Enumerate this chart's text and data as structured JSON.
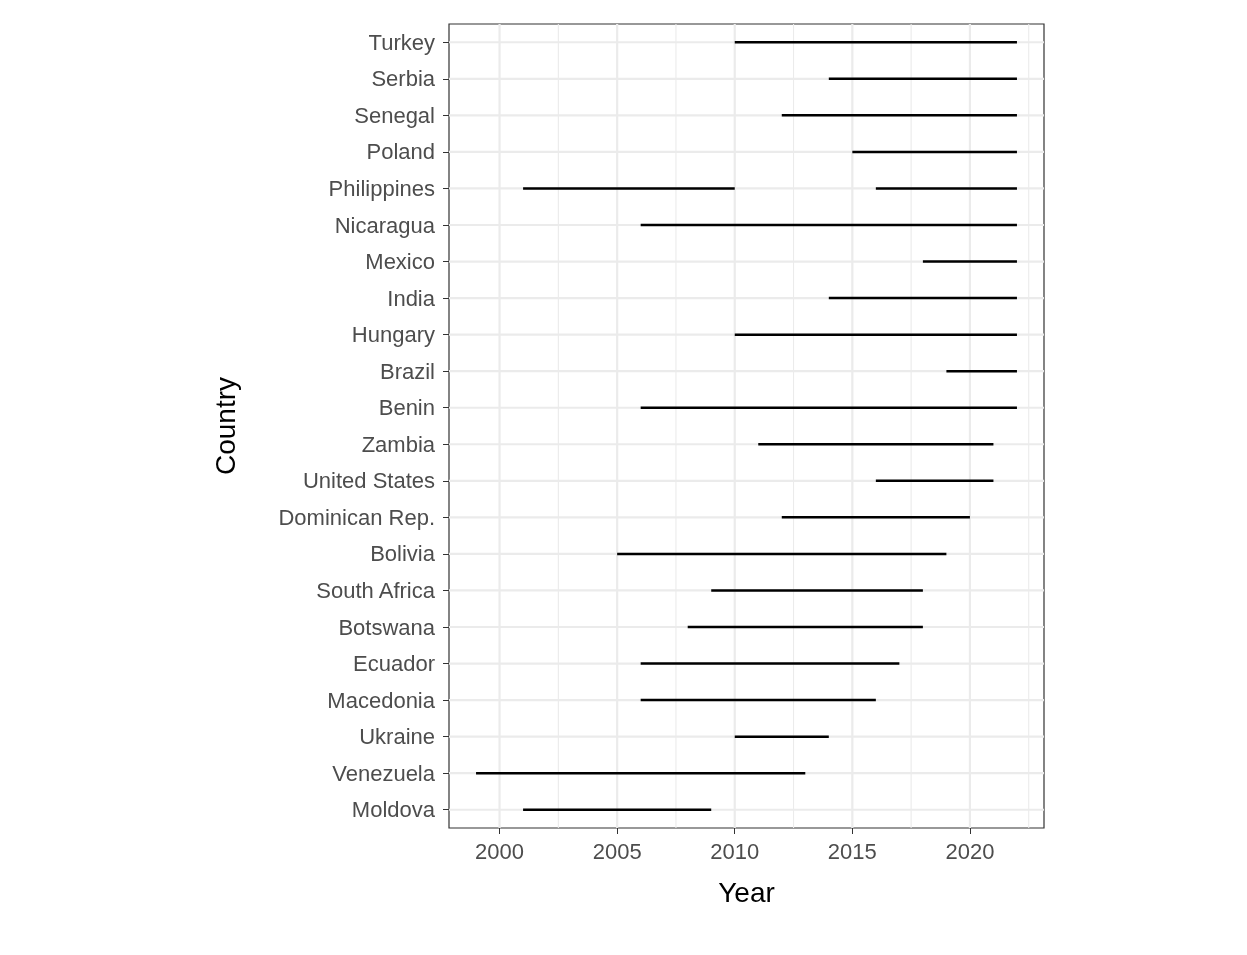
{
  "chart_data": {
    "type": "bar",
    "orientation": "horizontal",
    "xlabel": "Year",
    "ylabel": "Country",
    "categories": [
      "Turkey",
      "Serbia",
      "Senegal",
      "Poland",
      "Philippines",
      "Nicaragua",
      "Mexico",
      "India",
      "Hungary",
      "Brazil",
      "Benin",
      "Zambia",
      "United States",
      "Dominican Rep.",
      "Bolivia",
      "South Africa",
      "Botswana",
      "Ecuador",
      "Macedonia",
      "Ukraine",
      "Venezuela",
      "Moldova"
    ],
    "series": [
      {
        "color": "#000000",
        "base": [
          2010,
          2014,
          2012,
          2015,
          2001,
          2006,
          2018,
          2014,
          2010,
          2019,
          2006,
          2011,
          2016,
          2012,
          2005,
          2009,
          2008,
          2006,
          2006,
          2010,
          1999,
          2001
        ],
        "values": [
          12,
          8,
          10,
          7,
          9,
          16,
          4,
          8,
          12,
          3,
          16,
          10,
          5,
          8,
          14,
          9,
          10,
          11,
          10,
          4,
          14,
          8
        ]
      },
      {
        "color": "#000000",
        "base": [
          null,
          null,
          null,
          null,
          2016,
          null,
          null,
          null,
          null,
          null,
          null,
          null,
          null,
          null,
          null,
          null,
          null,
          null,
          null,
          null,
          null,
          null
        ],
        "values": [
          null,
          null,
          null,
          null,
          6,
          null,
          null,
          null,
          null,
          null,
          null,
          null,
          null,
          null,
          null,
          null,
          null,
          null,
          null,
          null,
          null,
          null
        ]
      }
    ],
    "xlim": [
      1997.85,
      2023.15
    ],
    "xticks": [
      2000,
      {
        "value": 2002.5,
        "label": null
      },
      2005,
      {
        "value": 2007.5,
        "label": null
      },
      2010,
      {
        "value": 2012.5,
        "label": null
      },
      2015,
      {
        "value": 2017.5,
        "label": null
      },
      2020,
      {
        "value": 2022.5,
        "label": null
      }
    ],
    "grid": true
  }
}
